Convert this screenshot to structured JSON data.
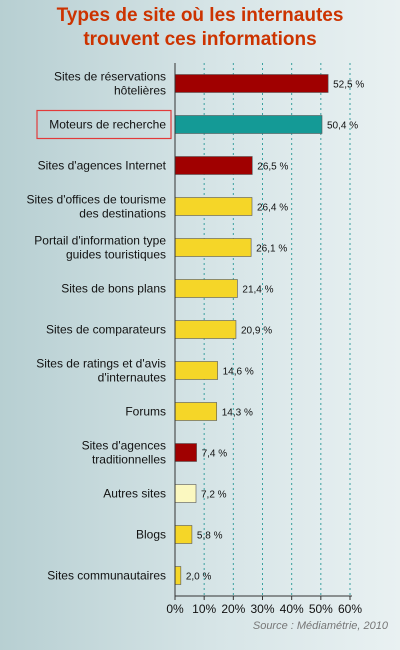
{
  "title_lines": [
    "Types de site où les internautes",
    "trouvent ces informations"
  ],
  "source": "Source : Médiamétrie, 2010",
  "colors": {
    "dark_red": "#a00000",
    "teal": "#149a96",
    "yellow": "#f5d628",
    "pale_yellow": "#fbf8c0",
    "highlight_box": "#e23a3a",
    "gridline": "#3aa0a0"
  },
  "chart_data": {
    "type": "bar",
    "orientation": "horizontal",
    "xlim": [
      0,
      60
    ],
    "x_ticks": [
      {
        "value": 0,
        "label": "0%"
      },
      {
        "value": 10,
        "label": "10%"
      },
      {
        "value": 20,
        "label": "20%"
      },
      {
        "value": 30,
        "label": "30%"
      },
      {
        "value": 40,
        "label": "40%"
      },
      {
        "value": 50,
        "label": "50%"
      },
      {
        "value": 60,
        "label": "60%"
      }
    ],
    "grid": true,
    "highlighted_category": 1,
    "bars": [
      {
        "label_lines": [
          "Sites de réservations",
          "hôtelières"
        ],
        "value": 52.5,
        "value_label": "52,5 %",
        "color": "dark_red"
      },
      {
        "label_lines": [
          "Moteurs de recherche"
        ],
        "value": 50.4,
        "value_label": "50,4 %",
        "color": "teal"
      },
      {
        "label_lines": [
          "Sites d'agences Internet"
        ],
        "value": 26.5,
        "value_label": "26,5 %",
        "color": "dark_red"
      },
      {
        "label_lines": [
          "Sites d'offices de tourisme",
          "des destinations"
        ],
        "value": 26.4,
        "value_label": "26,4 %",
        "color": "yellow"
      },
      {
        "label_lines": [
          "Portail d'information type",
          "guides touristiques"
        ],
        "value": 26.1,
        "value_label": "26,1 %",
        "color": "yellow"
      },
      {
        "label_lines": [
          "Sites de bons plans"
        ],
        "value": 21.4,
        "value_label": "21,4 %",
        "color": "yellow"
      },
      {
        "label_lines": [
          "Sites de comparateurs"
        ],
        "value": 20.9,
        "value_label": "20,9 %",
        "color": "yellow"
      },
      {
        "label_lines": [
          "Sites de ratings et d'avis",
          "d'internautes"
        ],
        "value": 14.6,
        "value_label": "14,6 %",
        "color": "yellow"
      },
      {
        "label_lines": [
          "Forums"
        ],
        "value": 14.3,
        "value_label": "14,3 %",
        "color": "yellow"
      },
      {
        "label_lines": [
          "Sites d'agences",
          "traditionnelles"
        ],
        "value": 7.4,
        "value_label": "7,4 %",
        "color": "dark_red"
      },
      {
        "label_lines": [
          "Autres sites"
        ],
        "value": 7.2,
        "value_label": "7,2 %",
        "color": "pale_yellow"
      },
      {
        "label_lines": [
          "Blogs"
        ],
        "value": 5.8,
        "value_label": "5,8 %",
        "color": "yellow"
      },
      {
        "label_lines": [
          "Sites communautaires"
        ],
        "value": 2.0,
        "value_label": "2,0 %",
        "color": "yellow"
      }
    ]
  }
}
